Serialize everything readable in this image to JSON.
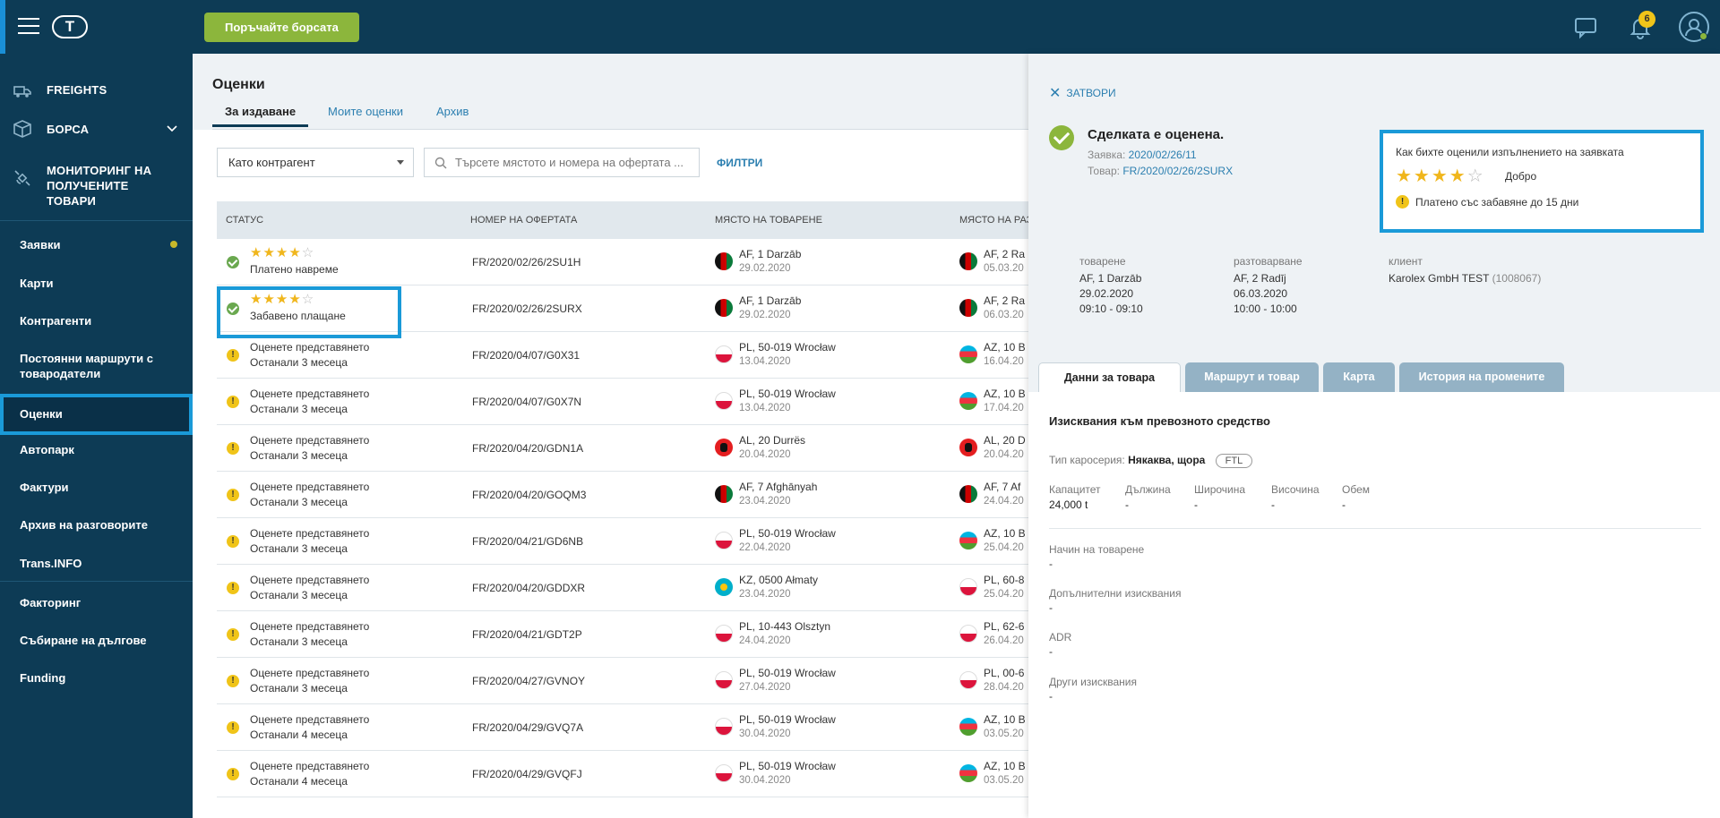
{
  "header": {
    "logo_text": "T",
    "exchange_button": "Поръчайте борсата",
    "notifications_count": "6"
  },
  "sidebar": {
    "main_items": [
      {
        "label": "FREIGHTS",
        "icon": "truck-icon"
      },
      {
        "label": "БОРСА",
        "icon": "box-icon"
      },
      {
        "label": "МОНИТОРИНГ НА ПОЛУЧЕНИТЕ ТОВАРИ",
        "icon": "satellite-icon"
      }
    ],
    "items": [
      {
        "label": "Заявки"
      },
      {
        "label": "Карти"
      },
      {
        "label": "Контрагенти"
      },
      {
        "label": "Постоянни маршрути с товародатели"
      },
      {
        "label": "Оценки"
      },
      {
        "label": "Автопарк"
      },
      {
        "label": "Фактури"
      },
      {
        "label": "Архив на разговорите"
      },
      {
        "label": "Trans.INFO"
      },
      {
        "label": "Факторинг"
      },
      {
        "label": "Събиране на дългове"
      },
      {
        "label": "Funding"
      }
    ]
  },
  "main": {
    "title": "Оценки",
    "tabs": [
      {
        "label": "За издаване"
      },
      {
        "label": "Моите оценки"
      },
      {
        "label": "Архив"
      }
    ],
    "filter_select": "Като контрагент",
    "search_placeholder": "Търсете мястото и номера на офертата ...",
    "filters_link": "ФИЛТРИ",
    "columns": {
      "status": "СТАТУС",
      "offer": "НОМЕР НА ОФЕРТАТА",
      "loading": "МЯСТО НА ТОВАРЕНЕ",
      "unloading": "МЯСТО НА РАЗТ"
    },
    "rows": [
      {
        "type": "rated",
        "rating": 4,
        "status": "Платено навреме",
        "offer": "FR/2020/02/26/2SU1H",
        "from_flag": "af",
        "from": "AF, 1 Darzāb",
        "from_date": "29.02.2020",
        "to_flag": "af",
        "to": "AF, 2 Ra",
        "to_date": "05.03.20"
      },
      {
        "type": "rated",
        "rating": 4,
        "status": "Забавено плащане",
        "offer": "FR/2020/02/26/2SURX",
        "from_flag": "af",
        "from": "AF, 1 Darzāb",
        "from_date": "29.02.2020",
        "to_flag": "af",
        "to": "AF, 2 Ra",
        "to_date": "06.03.20"
      },
      {
        "type": "pending",
        "status": "Оценете представянето",
        "remaining_prefix": "Останали",
        "remaining": "3 месеца",
        "offer": "FR/2020/04/07/G0X31",
        "from_flag": "pl",
        "from": "PL, 50-019 Wrocław",
        "from_date": "13.04.2020",
        "to_flag": "az",
        "to": "AZ, 10 B",
        "to_date": "16.04.20"
      },
      {
        "type": "pending",
        "status": "Оценете представянето",
        "remaining_prefix": "Останали",
        "remaining": "3 месеца",
        "offer": "FR/2020/04/07/G0X7N",
        "from_flag": "pl",
        "from": "PL, 50-019 Wrocław",
        "from_date": "13.04.2020",
        "to_flag": "az",
        "to": "AZ, 10 B",
        "to_date": "17.04.20"
      },
      {
        "type": "pending",
        "status": "Оценете представянето",
        "remaining_prefix": "Останали",
        "remaining": "3 месеца",
        "offer": "FR/2020/04/20/GDN1A",
        "from_flag": "al",
        "from": "AL, 20 Durrës",
        "from_date": "20.04.2020",
        "to_flag": "al",
        "to": "AL, 20 D",
        "to_date": "20.04.20"
      },
      {
        "type": "pending",
        "status": "Оценете представянето",
        "remaining_prefix": "Останали",
        "remaining": "3 месеца",
        "offer": "FR/2020/04/20/GOQM3",
        "from_flag": "af",
        "from": "AF, 7 Afghānyah",
        "from_date": "23.04.2020",
        "to_flag": "af",
        "to": "AF, 7 Af",
        "to_date": "24.04.20"
      },
      {
        "type": "pending",
        "status": "Оценете представянето",
        "remaining_prefix": "Останали",
        "remaining": "3 месеца",
        "offer": "FR/2020/04/21/GD6NB",
        "from_flag": "pl",
        "from": "PL, 50-019 Wrocław",
        "from_date": "22.04.2020",
        "to_flag": "az",
        "to": "AZ, 10 B",
        "to_date": "25.04.20"
      },
      {
        "type": "pending",
        "status": "Оценете представянето",
        "remaining_prefix": "Останали",
        "remaining": "3 месеца",
        "offer": "FR/2020/04/20/GDDXR",
        "from_flag": "kz",
        "from": "KZ, 0500 Ałmaty",
        "from_date": "23.04.2020",
        "to_flag": "pl",
        "to": "PL, 60-8",
        "to_date": "25.04.20"
      },
      {
        "type": "pending",
        "status": "Оценете представянето",
        "remaining_prefix": "Останали",
        "remaining": "3 месеца",
        "offer": "FR/2020/04/21/GDT2P",
        "from_flag": "pl",
        "from": "PL, 10-443 Olsztyn",
        "from_date": "24.04.2020",
        "to_flag": "pl",
        "to": "PL, 62-6",
        "to_date": "26.04.20"
      },
      {
        "type": "pending",
        "status": "Оценете представянето",
        "remaining_prefix": "Останали",
        "remaining": "3 месеца",
        "offer": "FR/2020/04/27/GVNOY",
        "from_flag": "pl",
        "from": "PL, 50-019 Wrocław",
        "from_date": "27.04.2020",
        "to_flag": "pl",
        "to": "PL, 00-6",
        "to_date": "28.04.20"
      },
      {
        "type": "pending",
        "status": "Оценете представянето",
        "remaining_prefix": "Останали",
        "remaining": "4 месеца",
        "offer": "FR/2020/04/29/GVQ7A",
        "from_flag": "pl",
        "from": "PL, 50-019 Wrocław",
        "from_date": "30.04.2020",
        "to_flag": "az",
        "to": "AZ, 10 B",
        "to_date": "03.05.20"
      },
      {
        "type": "pending",
        "status": "Оценете представянето",
        "remaining_prefix": "Останали",
        "remaining": "4 месеца",
        "offer": "FR/2020/04/29/GVQFJ",
        "from_flag": "pl",
        "from": "PL, 50-019 Wrocław",
        "from_date": "30.04.2020",
        "to_flag": "az",
        "to": "AZ, 10 B",
        "to_date": "03.05.20"
      }
    ]
  },
  "detail": {
    "close_label": "ЗАТВОРИ",
    "deal_title": "Сделката е оценена.",
    "order_label": "Заявка:",
    "order_value": "2020/02/26/11",
    "cargo_label": "Товар:",
    "cargo_value": "FR/2020/02/26/2SURX",
    "rating_question": "Как бихте оценили изпълнението на заявката",
    "rating_value": 4,
    "rating_word": "Добро",
    "rating_note": "Платено със забавяне до 15 дни",
    "loading": {
      "label": "товарене",
      "place": "AF, 1 Darzāb",
      "date": "29.02.2020",
      "time": "09:10 - 09:10"
    },
    "unloading": {
      "label": "разтоварване",
      "place": "AF, 2 Radīj",
      "date": "06.03.2020",
      "time": "10:00 - 10:00"
    },
    "client": {
      "label": "клиент",
      "name": "Karolex GmbH TEST",
      "id": "(1008067)"
    },
    "tabs": [
      {
        "label": "Данни за товара"
      },
      {
        "label": "Маршрут и товар"
      },
      {
        "label": "Карта"
      },
      {
        "label": "История на промените"
      }
    ],
    "section_title": "Изисквания към превозното средство",
    "body_type_label": "Тип каросерия:",
    "body_type_value": "Някаква, щора",
    "body_type_badge": "FTL",
    "specs": [
      {
        "label": "Капацитет",
        "value": "24,000 t"
      },
      {
        "label": "Дължина",
        "value": "-"
      },
      {
        "label": "Широчина",
        "value": "-"
      },
      {
        "label": "Височина",
        "value": "-"
      },
      {
        "label": "Обем",
        "value": "-"
      }
    ],
    "fields": [
      {
        "label": "Начин на товарене",
        "value": "-"
      },
      {
        "label": "Допълнителни изисквания",
        "value": "-"
      },
      {
        "label": "ADR",
        "value": "-"
      },
      {
        "label": "Други изисквания",
        "value": "-"
      }
    ]
  }
}
